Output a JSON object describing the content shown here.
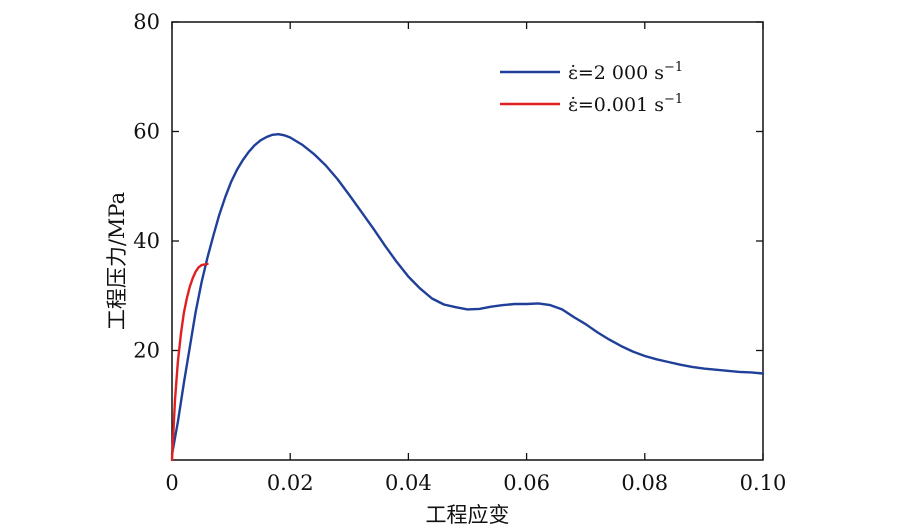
{
  "chart_data": {
    "type": "line",
    "title": "",
    "xlabel": "工程应变",
    "ylabel": "工程压力/MPa",
    "xlim": [
      0,
      0.1
    ],
    "ylim": [
      0,
      80
    ],
    "x_ticks": [
      0,
      0.02,
      0.04,
      0.06,
      0.08,
      0.1
    ],
    "x_tick_labels": [
      "0",
      "0.02",
      "0.04",
      "0.06",
      "0.08",
      "0.10"
    ],
    "y_ticks": [
      20,
      40,
      60,
      80
    ],
    "y_tick_labels": [
      "20",
      "40",
      "60",
      "80"
    ],
    "grid": false,
    "legend_position": "top-right",
    "series": [
      {
        "name": "ε̇=2 000 s⁻¹",
        "legend_prefix": "ε̇=2 000 s",
        "legend_sup": "−1",
        "color": "#1f3f99",
        "x": [
          0,
          0.001,
          0.002,
          0.003,
          0.004,
          0.005,
          0.006,
          0.007,
          0.008,
          0.009,
          0.01,
          0.011,
          0.012,
          0.013,
          0.014,
          0.015,
          0.016,
          0.017,
          0.018,
          0.019,
          0.02,
          0.022,
          0.024,
          0.026,
          0.028,
          0.03,
          0.032,
          0.034,
          0.036,
          0.038,
          0.04,
          0.042,
          0.044,
          0.046,
          0.048,
          0.05,
          0.052,
          0.054,
          0.056,
          0.058,
          0.06,
          0.062,
          0.064,
          0.066,
          0.068,
          0.07,
          0.072,
          0.074,
          0.076,
          0.078,
          0.08,
          0.082,
          0.084,
          0.086,
          0.088,
          0.09,
          0.092,
          0.094,
          0.096,
          0.098,
          0.1
        ],
        "y": [
          1,
          7,
          14,
          20.5,
          27,
          32.5,
          37,
          41,
          44.8,
          48,
          50.8,
          53,
          54.8,
          56.3,
          57.5,
          58.4,
          59,
          59.4,
          59.5,
          59.3,
          58.9,
          57.6,
          55.9,
          53.8,
          51.3,
          48.4,
          45.4,
          42.4,
          39.2,
          36.2,
          33.5,
          31.3,
          29.5,
          28.4,
          27.9,
          27.5,
          27.6,
          28,
          28.3,
          28.5,
          28.5,
          28.6,
          28.3,
          27.5,
          26.1,
          24.8,
          23.3,
          22,
          20.8,
          19.8,
          19,
          18.4,
          17.9,
          17.4,
          17,
          16.7,
          16.5,
          16.3,
          16.1,
          16,
          15.8
        ]
      },
      {
        "name": "ε̇=0.001 s⁻¹",
        "legend_prefix": "ε̇=0.001 s",
        "legend_sup": "−1",
        "color": "#e02020",
        "x": [
          0,
          0.0005,
          0.001,
          0.0015,
          0.002,
          0.0025,
          0.003,
          0.0035,
          0.004,
          0.0045,
          0.005,
          0.0055,
          0.006
        ],
        "y": [
          0,
          11,
          18,
          23,
          26.8,
          29.5,
          31.6,
          33.2,
          34.4,
          35.2,
          35.6,
          35.7,
          35.8
        ]
      }
    ]
  }
}
